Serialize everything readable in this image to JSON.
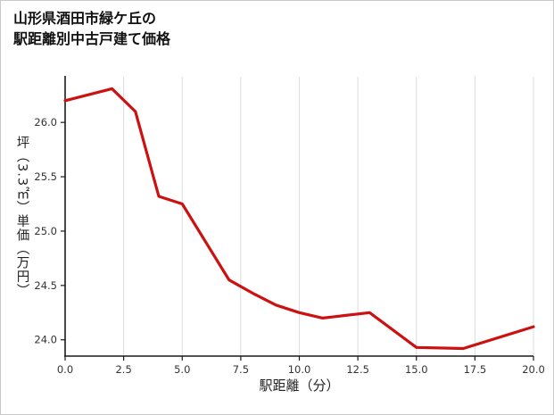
{
  "title": {
    "line1": "山形県酒田市緑ケ丘の",
    "line2": "駅距離別中古戸建て価格"
  },
  "chart_data": {
    "type": "line",
    "title": "山形県酒田市緑ケ丘の駅距離別中古戸建て価格",
    "xlabel": "駅距離（分）",
    "ylabel": "坪（3.3㎡）単価（万円）",
    "x": [
      0,
      2,
      3,
      4,
      5,
      7,
      8,
      9,
      10,
      11,
      13,
      15,
      17,
      20
    ],
    "y": [
      26.2,
      26.31,
      26.1,
      25.32,
      25.25,
      24.55,
      24.43,
      24.32,
      24.25,
      24.2,
      24.25,
      23.93,
      23.92,
      24.12
    ],
    "xlim": [
      0,
      20
    ],
    "ylim": [
      23.85,
      26.42
    ],
    "xticks": [
      0,
      2.5,
      5,
      7.5,
      10,
      12.5,
      15,
      17.5,
      20
    ],
    "xtick_labels": [
      "0.0",
      "2.5",
      "5.0",
      "7.5",
      "10.0",
      "12.5",
      "15.0",
      "17.5",
      "20.0"
    ],
    "yticks": [
      24.0,
      24.5,
      25.0,
      25.5,
      26.0
    ],
    "ytick_labels": [
      "24.0",
      "24.5",
      "25.0",
      "25.5",
      "26.0"
    ],
    "line_color": "#cc1111",
    "grid_color": "#dcdcdc",
    "axis_color": "#1a1a1a",
    "tick_label_color": "#333333",
    "grid": "vertical",
    "legend": "none"
  }
}
